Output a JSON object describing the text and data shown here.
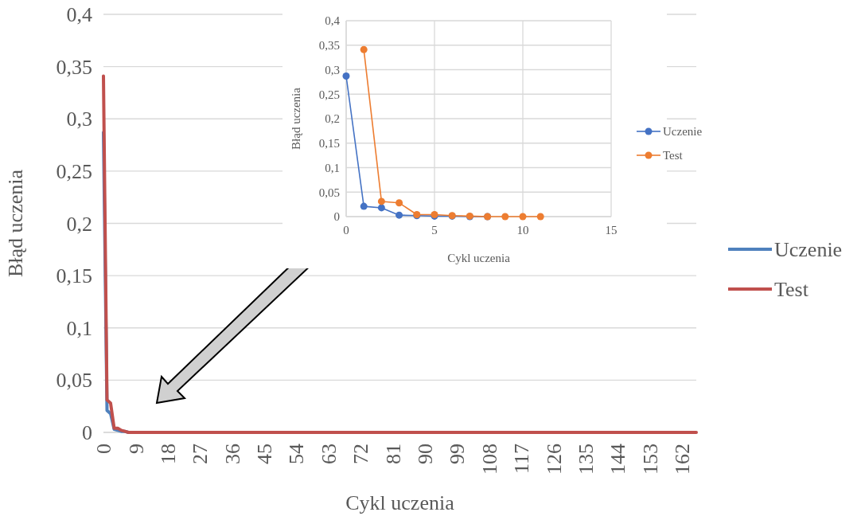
{
  "chart_data": [
    {
      "type": "line",
      "xlabel": "Cykl uczenia",
      "ylabel": "Błąd uczenia",
      "xlim": [
        0,
        166
      ],
      "xticks": [
        0,
        9,
        18,
        27,
        36,
        45,
        54,
        63,
        72,
        81,
        90,
        99,
        108,
        117,
        126,
        135,
        144,
        153,
        162
      ],
      "ylim": [
        0,
        0.4
      ],
      "yticks": [
        0,
        {
          "value": 0.05,
          "label": "0,05"
        },
        {
          "value": 0.1,
          "label": "0,1"
        },
        {
          "value": 0.15,
          "label": "0,15"
        },
        {
          "value": 0.2,
          "label": "0,2"
        },
        {
          "value": 0.25,
          "label": "0,25"
        },
        {
          "value": 0.3,
          "label": "0,3"
        },
        {
          "value": 0.35,
          "label": "0,35"
        },
        {
          "value": 0.4,
          "label": "0,4"
        }
      ],
      "grid": "y",
      "legend": "right",
      "marker": "none",
      "line_style": "solid",
      "series": [
        {
          "name": "Uczenie",
          "color": "#4f81bd",
          "x": [
            0,
            1,
            2,
            3,
            4,
            5,
            6,
            7,
            8
          ],
          "values": [
            0.287,
            0.021,
            0.018,
            0.003,
            0.002,
            0.001,
            0.001,
            0,
            0
          ]
        },
        {
          "name": "Test",
          "color": "#c0504d",
          "x": [
            0,
            1,
            2,
            3,
            4,
            5,
            6,
            7,
            8,
            9,
            10,
            166
          ],
          "values": [
            0.341,
            0.031,
            0.028,
            0.004,
            0.004,
            0.002,
            0.001,
            0,
            0,
            0,
            0,
            0
          ]
        }
      ]
    },
    {
      "type": "line",
      "xlabel": "Cykl uczenia",
      "ylabel": "Błąd uczenia",
      "xlim": [
        0,
        15
      ],
      "xticks": [
        0,
        5,
        10,
        15
      ],
      "ylim": [
        0,
        0.4
      ],
      "yticks": [
        0,
        {
          "value": 0.05,
          "label": "0,05"
        },
        {
          "value": 0.1,
          "label": "0,1"
        },
        {
          "value": 0.15,
          "label": "0,15"
        },
        {
          "value": 0.2,
          "label": "0,2"
        },
        {
          "value": 0.25,
          "label": "0,25"
        },
        {
          "value": 0.3,
          "label": "0,3"
        },
        {
          "value": 0.35,
          "label": "0,35"
        },
        {
          "value": 0.4,
          "label": "0,4"
        }
      ],
      "grid": true,
      "legend": "right",
      "marker": "circle",
      "line_style": "solid",
      "series": [
        {
          "name": "Uczenie",
          "color": "#4472c4",
          "x": [
            0,
            1,
            2,
            3,
            4,
            5,
            6,
            7,
            8
          ],
          "values": [
            0.287,
            0.021,
            0.018,
            0.003,
            0.002,
            0.001,
            0.001,
            0,
            0
          ]
        },
        {
          "name": "Test",
          "color": "#ed7d31",
          "x": [
            1,
            2,
            3,
            4,
            5,
            6,
            7,
            8,
            9,
            10,
            11
          ],
          "values": [
            0.341,
            0.031,
            0.028,
            0.004,
            0.004,
            0.002,
            0.001,
            0,
            0,
            0,
            0
          ]
        }
      ]
    }
  ]
}
